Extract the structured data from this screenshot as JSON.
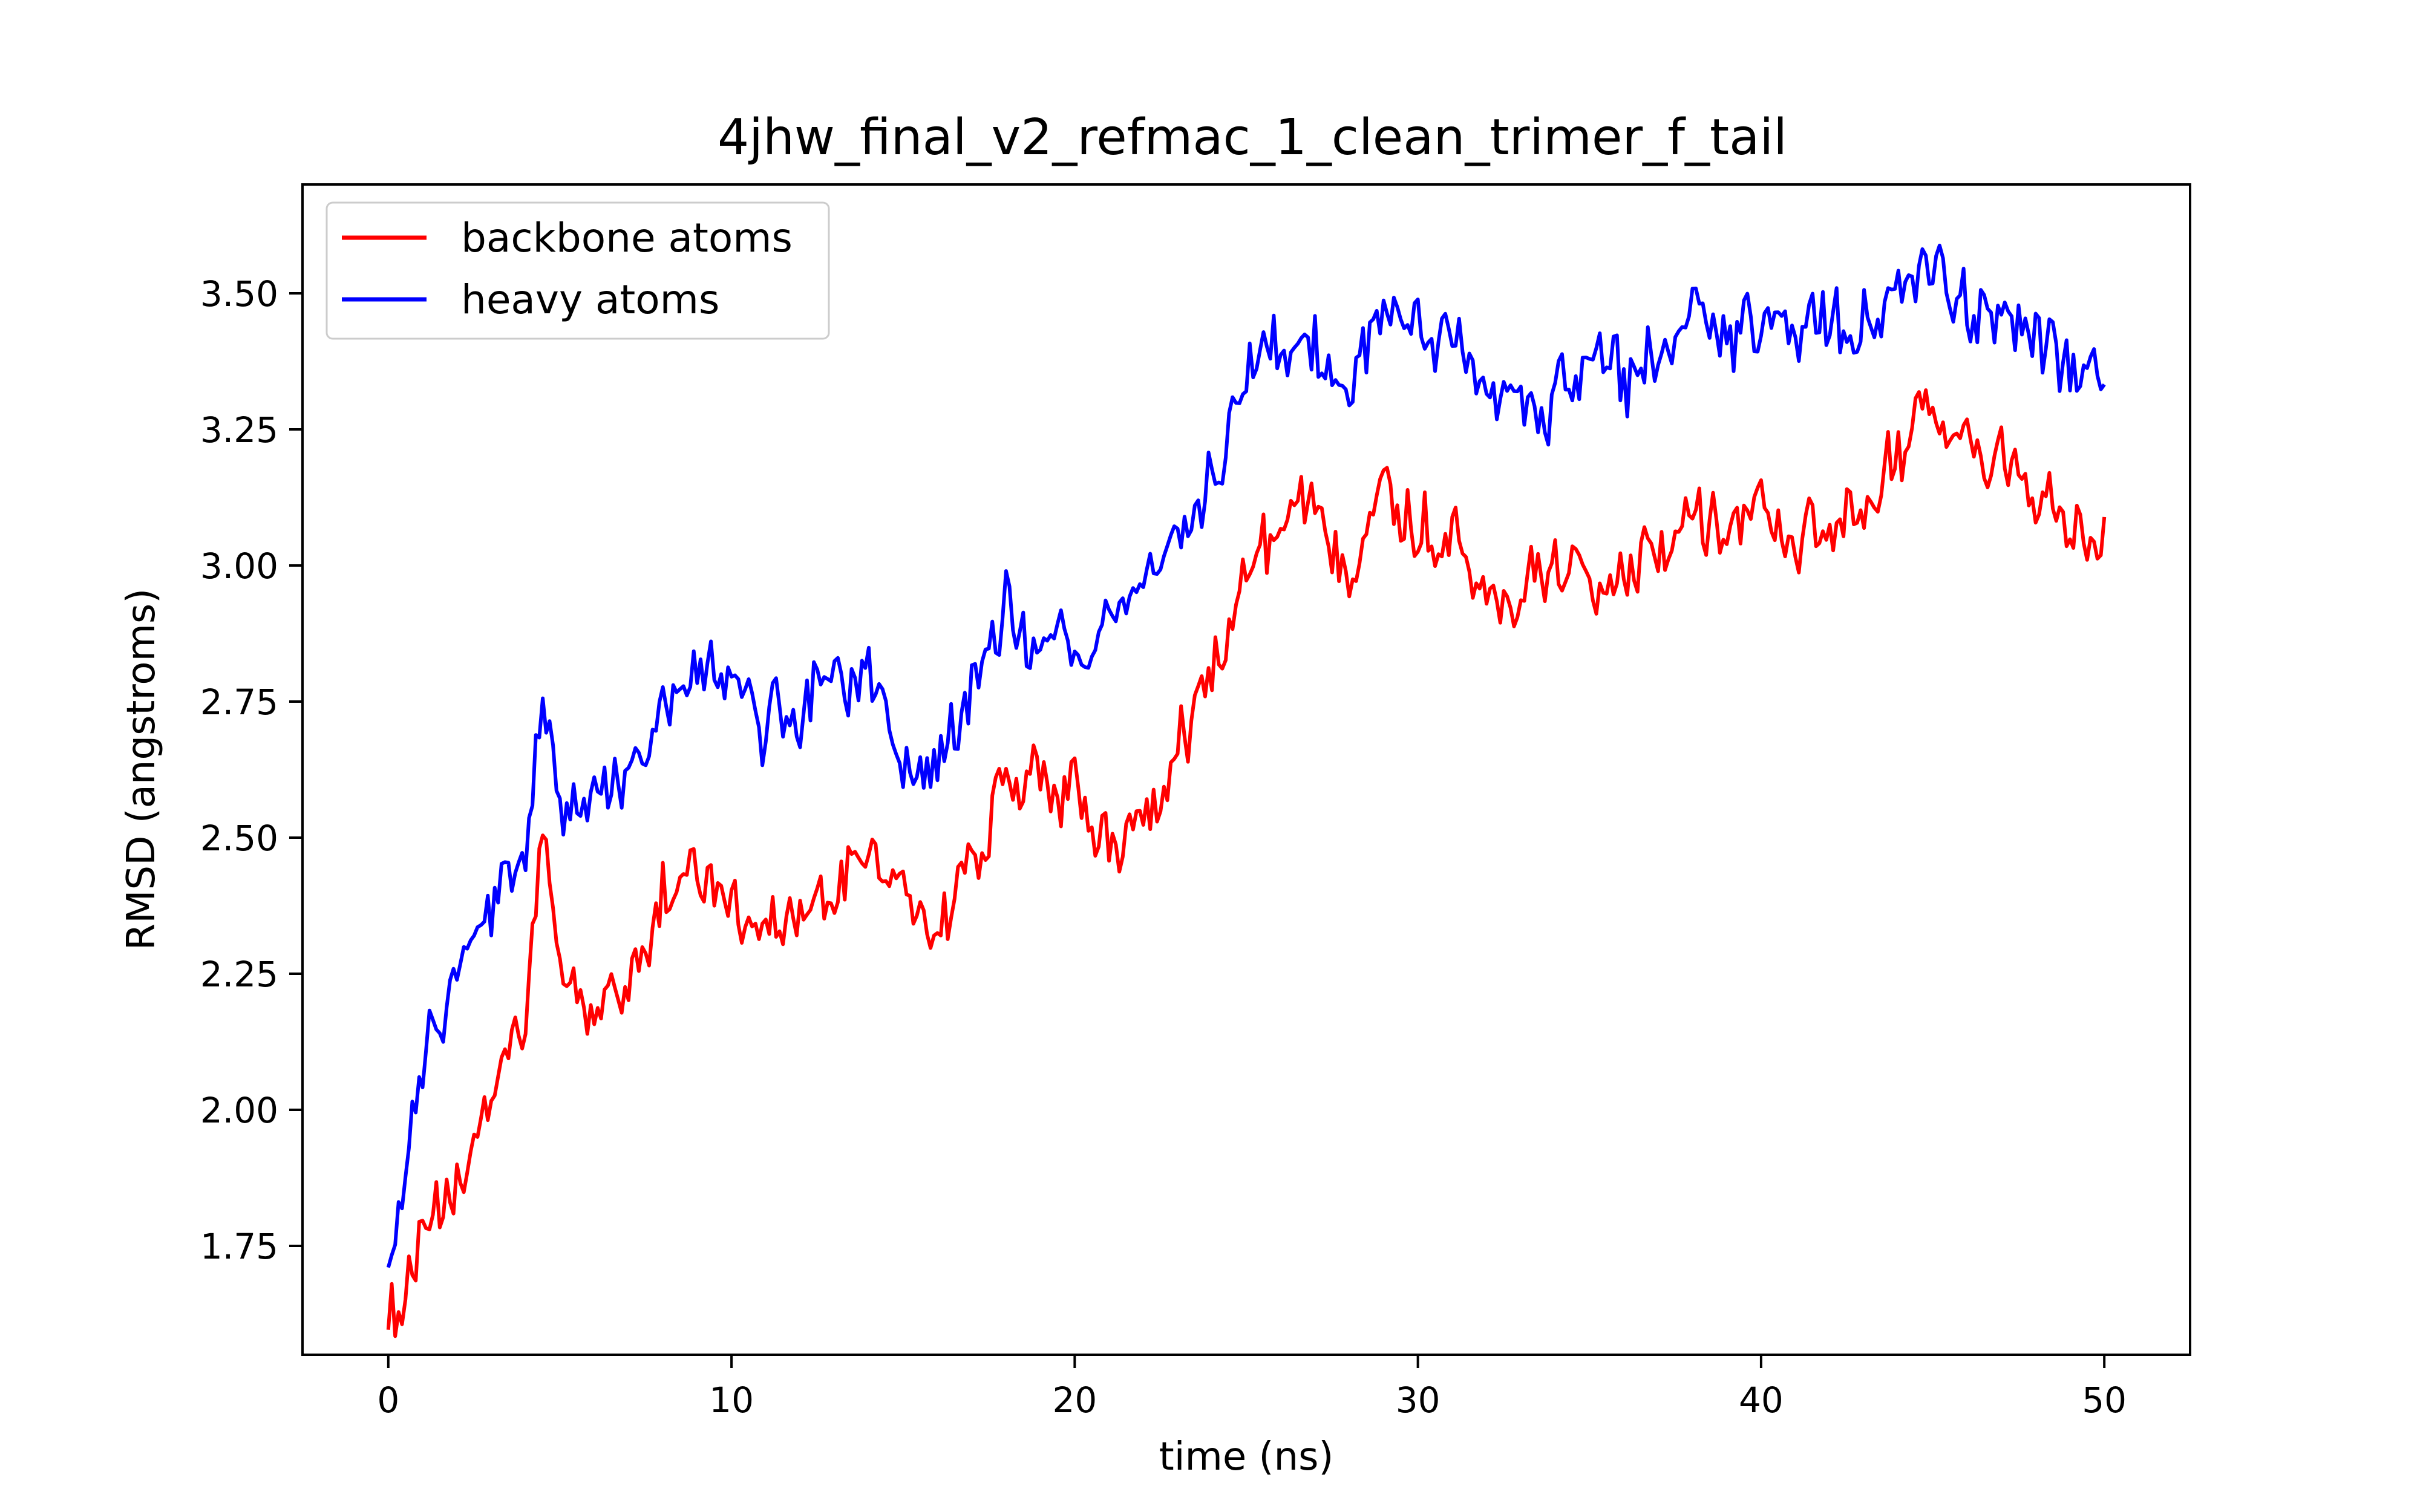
{
  "chart_data": {
    "type": "line",
    "title": "4jhw_final_v2_refmac_1_clean_trimer_f_tail",
    "xlabel": "time (ns)",
    "ylabel": "RMSD (angstroms)",
    "xlim": [
      -2.5,
      52.5
    ],
    "ylim": [
      1.55,
      3.7
    ],
    "xticks": [
      0,
      10,
      20,
      30,
      40,
      50
    ],
    "xtick_labels": [
      "0",
      "10",
      "20",
      "30",
      "40",
      "50"
    ],
    "yticks": [
      1.75,
      2.0,
      2.25,
      2.5,
      2.75,
      3.0,
      3.25,
      3.5
    ],
    "ytick_labels": [
      "1.75",
      "2.00",
      "2.25",
      "2.50",
      "2.75",
      "3.00",
      "3.25",
      "3.50"
    ],
    "grid": false,
    "legend": "top-left",
    "x": [
      0,
      1,
      2,
      3,
      4,
      4.5,
      5,
      6,
      7,
      8,
      9,
      10,
      11,
      12,
      13,
      14,
      15,
      16,
      17,
      18,
      19,
      20,
      21,
      22,
      23,
      24,
      25,
      26,
      27,
      28,
      29,
      30,
      31,
      32,
      33,
      34,
      35,
      36,
      37,
      38,
      39,
      40,
      41,
      42,
      43,
      44,
      45,
      46,
      47,
      48,
      49,
      50
    ],
    "series": [
      {
        "name": "backbone atoms",
        "color": "#ff0000",
        "values": [
          1.62,
          1.74,
          1.85,
          2.02,
          2.18,
          2.5,
          2.25,
          2.18,
          2.22,
          2.4,
          2.45,
          2.38,
          2.35,
          2.32,
          2.4,
          2.48,
          2.38,
          2.33,
          2.45,
          2.62,
          2.6,
          2.58,
          2.45,
          2.55,
          2.68,
          2.8,
          2.98,
          3.05,
          3.1,
          3.02,
          3.18,
          3.05,
          3.08,
          2.98,
          2.95,
          2.98,
          3.02,
          3.0,
          3.05,
          3.1,
          3.08,
          3.1,
          3.05,
          3.02,
          3.1,
          3.22,
          3.25,
          3.2,
          3.18,
          3.15,
          3.02,
          3.08
        ]
      },
      {
        "name": "heavy atoms",
        "color": "#0000ff",
        "values": [
          1.78,
          2.1,
          2.25,
          2.35,
          2.5,
          2.75,
          2.6,
          2.58,
          2.6,
          2.75,
          2.8,
          2.78,
          2.72,
          2.75,
          2.8,
          2.75,
          2.65,
          2.62,
          2.78,
          2.95,
          2.85,
          2.85,
          2.9,
          2.95,
          3.05,
          3.18,
          3.35,
          3.4,
          3.38,
          3.3,
          3.45,
          3.42,
          3.4,
          3.3,
          3.28,
          3.3,
          3.35,
          3.32,
          3.38,
          3.45,
          3.42,
          3.45,
          3.4,
          3.42,
          3.45,
          3.5,
          3.52,
          3.48,
          3.45,
          3.42,
          3.35,
          3.35
        ]
      }
    ]
  }
}
